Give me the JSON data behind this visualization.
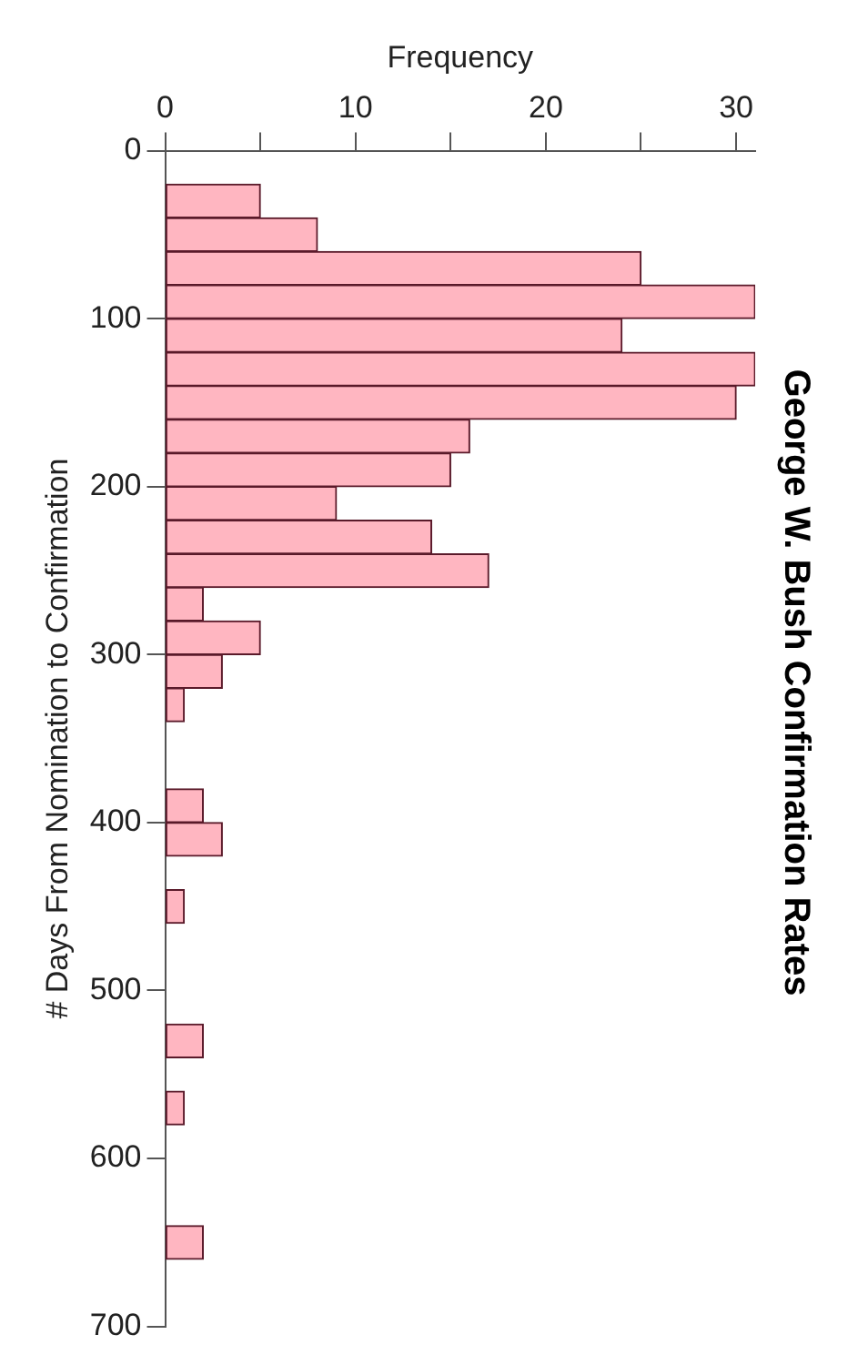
{
  "chart_data": {
    "type": "histogram",
    "orientation": "horizontal",
    "title": "George W. Bush Confirmation Rates",
    "xlabel": "Frequency",
    "ylabel": "# Days From Nomination to Confirmation",
    "bins": [
      20,
      40,
      60,
      80,
      100,
      120,
      140,
      160,
      180,
      200,
      220,
      240,
      260,
      280,
      300,
      320,
      340,
      360,
      380,
      400,
      420,
      440,
      460,
      480,
      500,
      520,
      540,
      560,
      580,
      600,
      620,
      640,
      660
    ],
    "values": [
      5,
      8,
      25,
      31,
      24,
      31,
      30,
      16,
      15,
      9,
      14,
      17,
      2,
      5,
      3,
      1,
      0,
      0,
      2,
      3,
      0,
      1,
      0,
      0,
      0,
      2,
      0,
      1,
      0,
      0,
      0,
      2
    ],
    "color": "#ffb6c1",
    "xlim": [
      0,
      31
    ],
    "xticks": [
      0,
      {
        "value": 5,
        "label": null
      },
      10,
      {
        "value": 15,
        "label": null
      },
      20,
      {
        "value": 25,
        "label": null
      },
      30
    ],
    "ylim": [
      700,
      0
    ],
    "yticks": [
      0,
      100,
      200,
      300,
      400,
      500,
      600,
      700
    ],
    "grid": false,
    "legend": false
  }
}
